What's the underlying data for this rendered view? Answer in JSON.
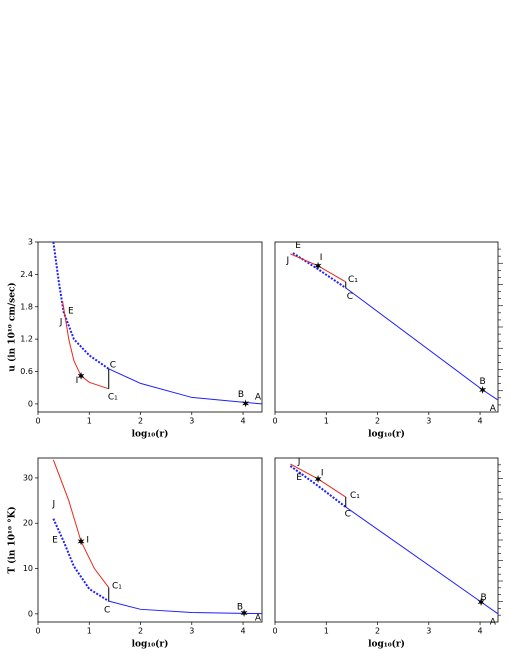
{
  "chart_data": [
    {
      "type": "line",
      "xlabel": "log₁₀(r)",
      "ylabel": "u (in 10¹⁰ cm/sec)",
      "xlim": [
        0,
        4.37
      ],
      "ylim": [
        -0.15,
        3
      ],
      "xticks": [
        0,
        1,
        2,
        3,
        4
      ],
      "yticks": [
        0,
        0.6,
        1.2,
        1.8,
        2.4,
        3
      ],
      "series": [
        {
          "color": "#1f1fff",
          "style": "dotted",
          "x": [
            0.3,
            0.4,
            0.5,
            0.7,
            1.0,
            1.38
          ],
          "values": [
            3.0,
            2.3,
            1.7,
            1.2,
            0.9,
            0.65
          ]
        },
        {
          "color": "#1f1fff",
          "style": "solid",
          "x": [
            1.38,
            2,
            3,
            4,
            4.37
          ],
          "values": [
            0.65,
            0.38,
            0.12,
            0.03,
            0.0
          ]
        },
        {
          "color": "#e8281c",
          "style": "solid",
          "x": [
            0.48,
            0.6,
            0.7,
            0.84,
            1.0,
            1.38
          ],
          "values": [
            1.9,
            1.2,
            0.8,
            0.52,
            0.4,
            0.28
          ]
        },
        {
          "color": "#000000",
          "style": "solid",
          "x": [
            1.38,
            1.38
          ],
          "values": [
            0.28,
            0.65
          ]
        }
      ],
      "markers": [
        {
          "x": 0.84,
          "y": 0.52
        },
        {
          "x": 4.05,
          "y": 0.01
        }
      ],
      "annotations": [
        {
          "text": "A",
          "x": 4.29,
          "y": 0.13
        },
        {
          "text": "B",
          "x": 3.96,
          "y": 0.17
        },
        {
          "text": "C",
          "x": 1.46,
          "y": 0.72
        },
        {
          "text": "C₁",
          "x": 1.46,
          "y": 0.13
        },
        {
          "text": "E",
          "x": 0.64,
          "y": 1.72
        },
        {
          "text": "I",
          "x": 0.76,
          "y": 0.43
        },
        {
          "text": "J",
          "x": 0.45,
          "y": 1.52
        }
      ]
    },
    {
      "type": "line",
      "xlabel": "log₁₀(r)",
      "xlim": [
        0,
        4.35
      ],
      "ylim": [
        0,
        1
      ],
      "xticks": [
        0,
        1,
        2,
        3,
        4
      ],
      "series": [
        {
          "color": "#1f1fff",
          "style": "dotted",
          "x": [
            0.35,
            0.84,
            1.38
          ],
          "values": [
            0.935,
            0.84,
            0.73
          ]
        },
        {
          "color": "#1f1fff",
          "style": "solid",
          "x": [
            1.38,
            4.05,
            4.35
          ],
          "values": [
            0.73,
            0.13,
            0.07
          ]
        },
        {
          "color": "#e8281c",
          "style": "solid",
          "x": [
            0.3,
            0.84,
            1.38
          ],
          "values": [
            0.93,
            0.86,
            0.765
          ]
        },
        {
          "color": "#000000",
          "style": "solid",
          "x": [
            1.38,
            1.38
          ],
          "values": [
            0.73,
            0.765
          ]
        }
      ],
      "markers": [
        {
          "x": 0.84,
          "y": 0.86
        },
        {
          "x": 4.05,
          "y": 0.13
        }
      ],
      "annotations": [
        {
          "text": "A",
          "x": 4.25,
          "y": 0.02
        },
        {
          "text": "B",
          "x": 4.05,
          "y": 0.18
        },
        {
          "text": "C",
          "x": 1.46,
          "y": 0.68
        },
        {
          "text": "C₁",
          "x": 1.52,
          "y": 0.78
        },
        {
          "text": "E",
          "x": 0.45,
          "y": 0.98
        },
        {
          "text": "I",
          "x": 0.9,
          "y": 0.91
        },
        {
          "text": "J",
          "x": 0.25,
          "y": 0.89
        }
      ]
    },
    {
      "type": "line",
      "xlabel": "log₁₀(r)",
      "ylabel": "T (in 10¹⁰ °K)",
      "xlim": [
        0,
        4.37
      ],
      "ylim": [
        -1.8,
        34.4
      ],
      "xticks": [
        0,
        1,
        2,
        3,
        4
      ],
      "yticks": [
        0,
        10,
        20,
        30
      ],
      "series": [
        {
          "color": "#1f1fff",
          "style": "dotted",
          "x": [
            0.3,
            0.5,
            0.7,
            1.0,
            1.38
          ],
          "values": [
            21,
            16,
            10.5,
            5.5,
            2.8
          ]
        },
        {
          "color": "#1f1fff",
          "style": "solid",
          "x": [
            1.38,
            2,
            3,
            4,
            4.37
          ],
          "values": [
            2.8,
            1.0,
            0.3,
            0.1,
            0.05
          ]
        },
        {
          "color": "#e8281c",
          "style": "solid",
          "x": [
            0.3,
            0.6,
            0.84,
            1.1,
            1.38
          ],
          "values": [
            34,
            25,
            16,
            10,
            5.8
          ]
        },
        {
          "color": "#000000",
          "style": "solid",
          "x": [
            1.38,
            1.38
          ],
          "values": [
            2.8,
            5.8
          ]
        }
      ],
      "markers": [
        {
          "x": 0.84,
          "y": 16
        },
        {
          "x": 4.02,
          "y": 0.2
        }
      ],
      "annotations": [
        {
          "text": "A",
          "x": 4.29,
          "y": -0.9
        },
        {
          "text": "B",
          "x": 3.94,
          "y": 1.5
        },
        {
          "text": "C",
          "x": 1.35,
          "y": 0.9
        },
        {
          "text": "C₁",
          "x": 1.54,
          "y": 6.2
        },
        {
          "text": "E",
          "x": 0.33,
          "y": 16.3
        },
        {
          "text": "I",
          "x": 0.97,
          "y": 16.3
        },
        {
          "text": "J",
          "x": 0.31,
          "y": 24.3
        }
      ]
    },
    {
      "type": "line",
      "xlabel": "log₁₀(r)",
      "xlim": [
        0,
        4.35
      ],
      "ylim": [
        0,
        1
      ],
      "xticks": [
        0,
        1,
        2,
        3,
        4
      ],
      "series": [
        {
          "color": "#1f1fff",
          "style": "dotted",
          "x": [
            0.3,
            0.84,
            1.38
          ],
          "values": [
            0.951,
            0.83,
            0.701
          ]
        },
        {
          "color": "#1f1fff",
          "style": "solid",
          "x": [
            1.38,
            4.02,
            4.35
          ],
          "values": [
            0.701,
            0.122,
            0.05
          ]
        },
        {
          "color": "#e8281c",
          "style": "solid",
          "x": [
            0.3,
            0.84,
            1.38
          ],
          "values": [
            0.963,
            0.872,
            0.762
          ]
        },
        {
          "color": "#000000",
          "style": "solid",
          "x": [
            1.38,
            1.38
          ],
          "values": [
            0.701,
            0.762
          ]
        }
      ],
      "markers": [
        {
          "x": 0.84,
          "y": 0.872
        },
        {
          "x": 4.02,
          "y": 0.122
        }
      ],
      "annotations": [
        {
          "text": "A",
          "x": 4.25,
          "y": 0.0
        },
        {
          "text": "B",
          "x": 4.07,
          "y": 0.15
        },
        {
          "text": "C",
          "x": 1.42,
          "y": 0.66
        },
        {
          "text": "C₁",
          "x": 1.56,
          "y": 0.77
        },
        {
          "text": "E",
          "x": 0.47,
          "y": 0.88
        },
        {
          "text": "I",
          "x": 0.92,
          "y": 0.91
        },
        {
          "text": "J",
          "x": 0.47,
          "y": 0.98
        }
      ]
    }
  ]
}
